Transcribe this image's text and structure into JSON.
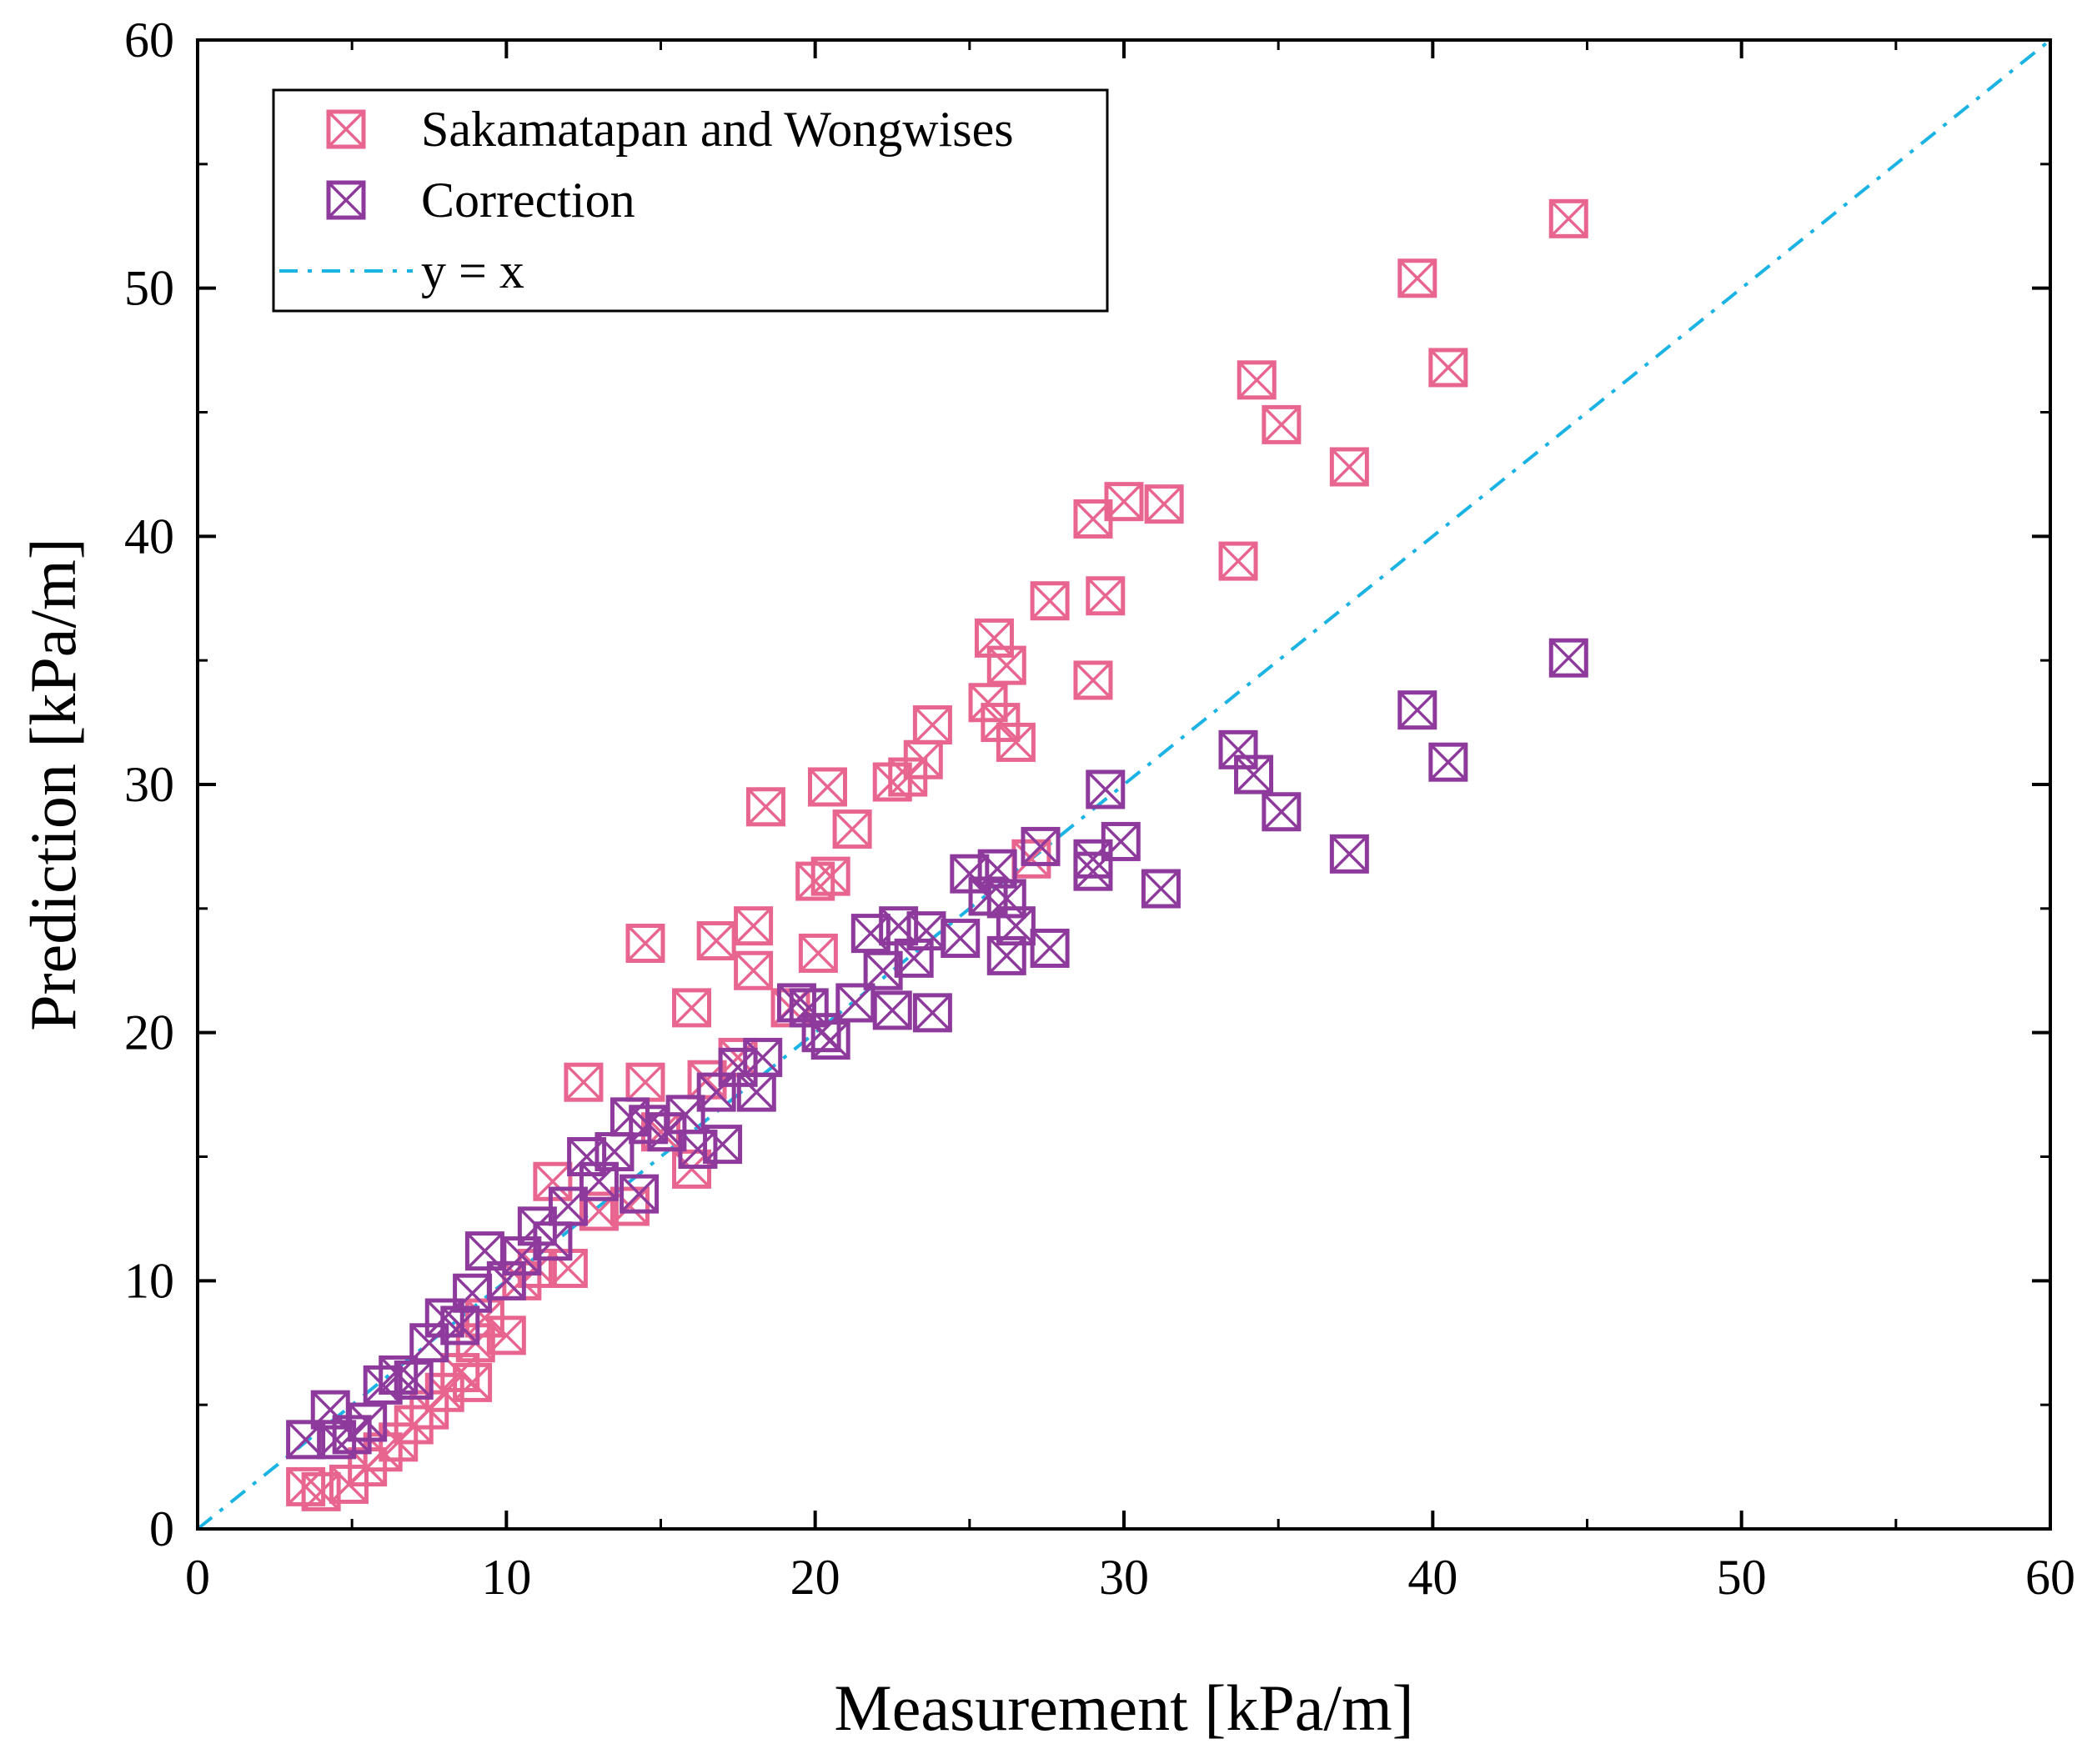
{
  "chart_data": {
    "type": "scatter",
    "xlabel": "Measurement [kPa/m]",
    "ylabel": "Prediction [kPa/m]",
    "xlim": [
      0,
      60
    ],
    "ylim": [
      0,
      60
    ],
    "xticks": [
      0,
      10,
      20,
      30,
      40,
      50,
      60
    ],
    "yticks": [
      0,
      10,
      20,
      30,
      40,
      50,
      60
    ],
    "grid": false,
    "legend_position": "top-left",
    "series": [
      {
        "name": "Sakamatapan and Wongwises",
        "color": "#E8658F",
        "marker": "square-x",
        "points": [
          [
            3.5,
            1.7
          ],
          [
            4.0,
            1.5
          ],
          [
            4.9,
            1.8
          ],
          [
            5.5,
            2.5
          ],
          [
            6.0,
            3.1
          ],
          [
            6.5,
            3.5
          ],
          [
            7.0,
            4.2
          ],
          [
            7.5,
            4.8
          ],
          [
            8.0,
            5.5
          ],
          [
            8.5,
            6.3
          ],
          [
            8.9,
            5.9
          ],
          [
            9.0,
            7.5
          ],
          [
            9.3,
            8.5
          ],
          [
            10.0,
            7.8
          ],
          [
            10.5,
            10.0
          ],
          [
            11.0,
            10.5
          ],
          [
            11.5,
            14.0
          ],
          [
            12.0,
            10.5
          ],
          [
            12.5,
            18.0
          ],
          [
            13.0,
            12.8
          ],
          [
            14.0,
            13.0
          ],
          [
            14.5,
            18.0
          ],
          [
            14.5,
            23.6
          ],
          [
            15.0,
            16.0
          ],
          [
            16.0,
            14.5
          ],
          [
            16.5,
            18.1
          ],
          [
            16.0,
            21.0
          ],
          [
            16.8,
            23.7
          ],
          [
            17.5,
            19.0
          ],
          [
            18.0,
            22.5
          ],
          [
            18.0,
            24.3
          ],
          [
            18.4,
            29.1
          ],
          [
            19.2,
            21.0
          ],
          [
            20.0,
            26.1
          ],
          [
            20.1,
            23.2
          ],
          [
            20.5,
            26.3
          ],
          [
            20.4,
            29.9
          ],
          [
            21.2,
            28.2
          ],
          [
            22.5,
            30.1
          ],
          [
            23.0,
            30.3
          ],
          [
            23.5,
            31.0
          ],
          [
            23.8,
            32.4
          ],
          [
            25.6,
            33.3
          ],
          [
            25.8,
            35.9
          ],
          [
            26.0,
            32.5
          ],
          [
            26.2,
            34.8
          ],
          [
            26.5,
            31.7
          ],
          [
            27.0,
            27.0
          ],
          [
            27.6,
            37.4
          ],
          [
            29.0,
            40.7
          ],
          [
            29.0,
            34.2
          ],
          [
            29.4,
            37.6
          ],
          [
            30.0,
            41.4
          ],
          [
            31.3,
            41.3
          ],
          [
            33.7,
            39.0
          ],
          [
            34.3,
            46.3
          ],
          [
            35.1,
            44.5
          ],
          [
            37.3,
            42.8
          ],
          [
            39.5,
            50.4
          ],
          [
            40.5,
            46.8
          ],
          [
            44.4,
            52.8
          ]
        ]
      },
      {
        "name": "Correction",
        "color": "#8E3A9D",
        "marker": "square-x",
        "points": [
          [
            3.5,
            3.6
          ],
          [
            4.3,
            4.8
          ],
          [
            4.5,
            3.6
          ],
          [
            5.0,
            3.8
          ],
          [
            5.5,
            4.3
          ],
          [
            6.0,
            5.8
          ],
          [
            6.5,
            6.2
          ],
          [
            7.0,
            6.0
          ],
          [
            7.5,
            7.5
          ],
          [
            8.0,
            8.5
          ],
          [
            8.5,
            8.2
          ],
          [
            8.9,
            9.5
          ],
          [
            9.3,
            11.2
          ],
          [
            10.0,
            10.0
          ],
          [
            10.5,
            11.0
          ],
          [
            11.0,
            12.2
          ],
          [
            11.5,
            11.6
          ],
          [
            12.0,
            13.0
          ],
          [
            12.6,
            15.0
          ],
          [
            13.0,
            14.0
          ],
          [
            13.5,
            15.2
          ],
          [
            14.0,
            16.6
          ],
          [
            14.3,
            13.5
          ],
          [
            14.6,
            16.3
          ],
          [
            15.2,
            16.0
          ],
          [
            15.8,
            16.7
          ],
          [
            16.2,
            15.3
          ],
          [
            16.8,
            17.6
          ],
          [
            17.0,
            15.5
          ],
          [
            17.5,
            18.6
          ],
          [
            18.1,
            17.6
          ],
          [
            18.3,
            19.0
          ],
          [
            19.4,
            21.2
          ],
          [
            19.8,
            21.0
          ],
          [
            20.2,
            20.0
          ],
          [
            20.5,
            19.7
          ],
          [
            21.3,
            21.2
          ],
          [
            21.8,
            24.0
          ],
          [
            22.2,
            22.5
          ],
          [
            22.5,
            20.9
          ],
          [
            22.7,
            24.3
          ],
          [
            23.2,
            23.0
          ],
          [
            23.6,
            24.1
          ],
          [
            23.8,
            20.8
          ],
          [
            24.7,
            23.8
          ],
          [
            25.0,
            26.4
          ],
          [
            25.6,
            25.5
          ],
          [
            25.9,
            26.6
          ],
          [
            26.2,
            23.1
          ],
          [
            26.5,
            24.3
          ],
          [
            26.2,
            25.4
          ],
          [
            27.3,
            27.5
          ],
          [
            27.6,
            23.4
          ],
          [
            29.0,
            26.5
          ],
          [
            29.0,
            27.0
          ],
          [
            29.4,
            29.8
          ],
          [
            29.9,
            27.7
          ],
          [
            31.2,
            25.8
          ],
          [
            33.7,
            31.4
          ],
          [
            34.2,
            30.4
          ],
          [
            35.1,
            28.9
          ],
          [
            37.3,
            27.2
          ],
          [
            39.5,
            33.0
          ],
          [
            40.5,
            30.9
          ],
          [
            44.4,
            35.1
          ]
        ]
      },
      {
        "name": "y = x",
        "color": "#1BB3E3",
        "line_style": "dash-dot",
        "points": [
          [
            0,
            0
          ],
          [
            60,
            60
          ]
        ]
      }
    ]
  }
}
